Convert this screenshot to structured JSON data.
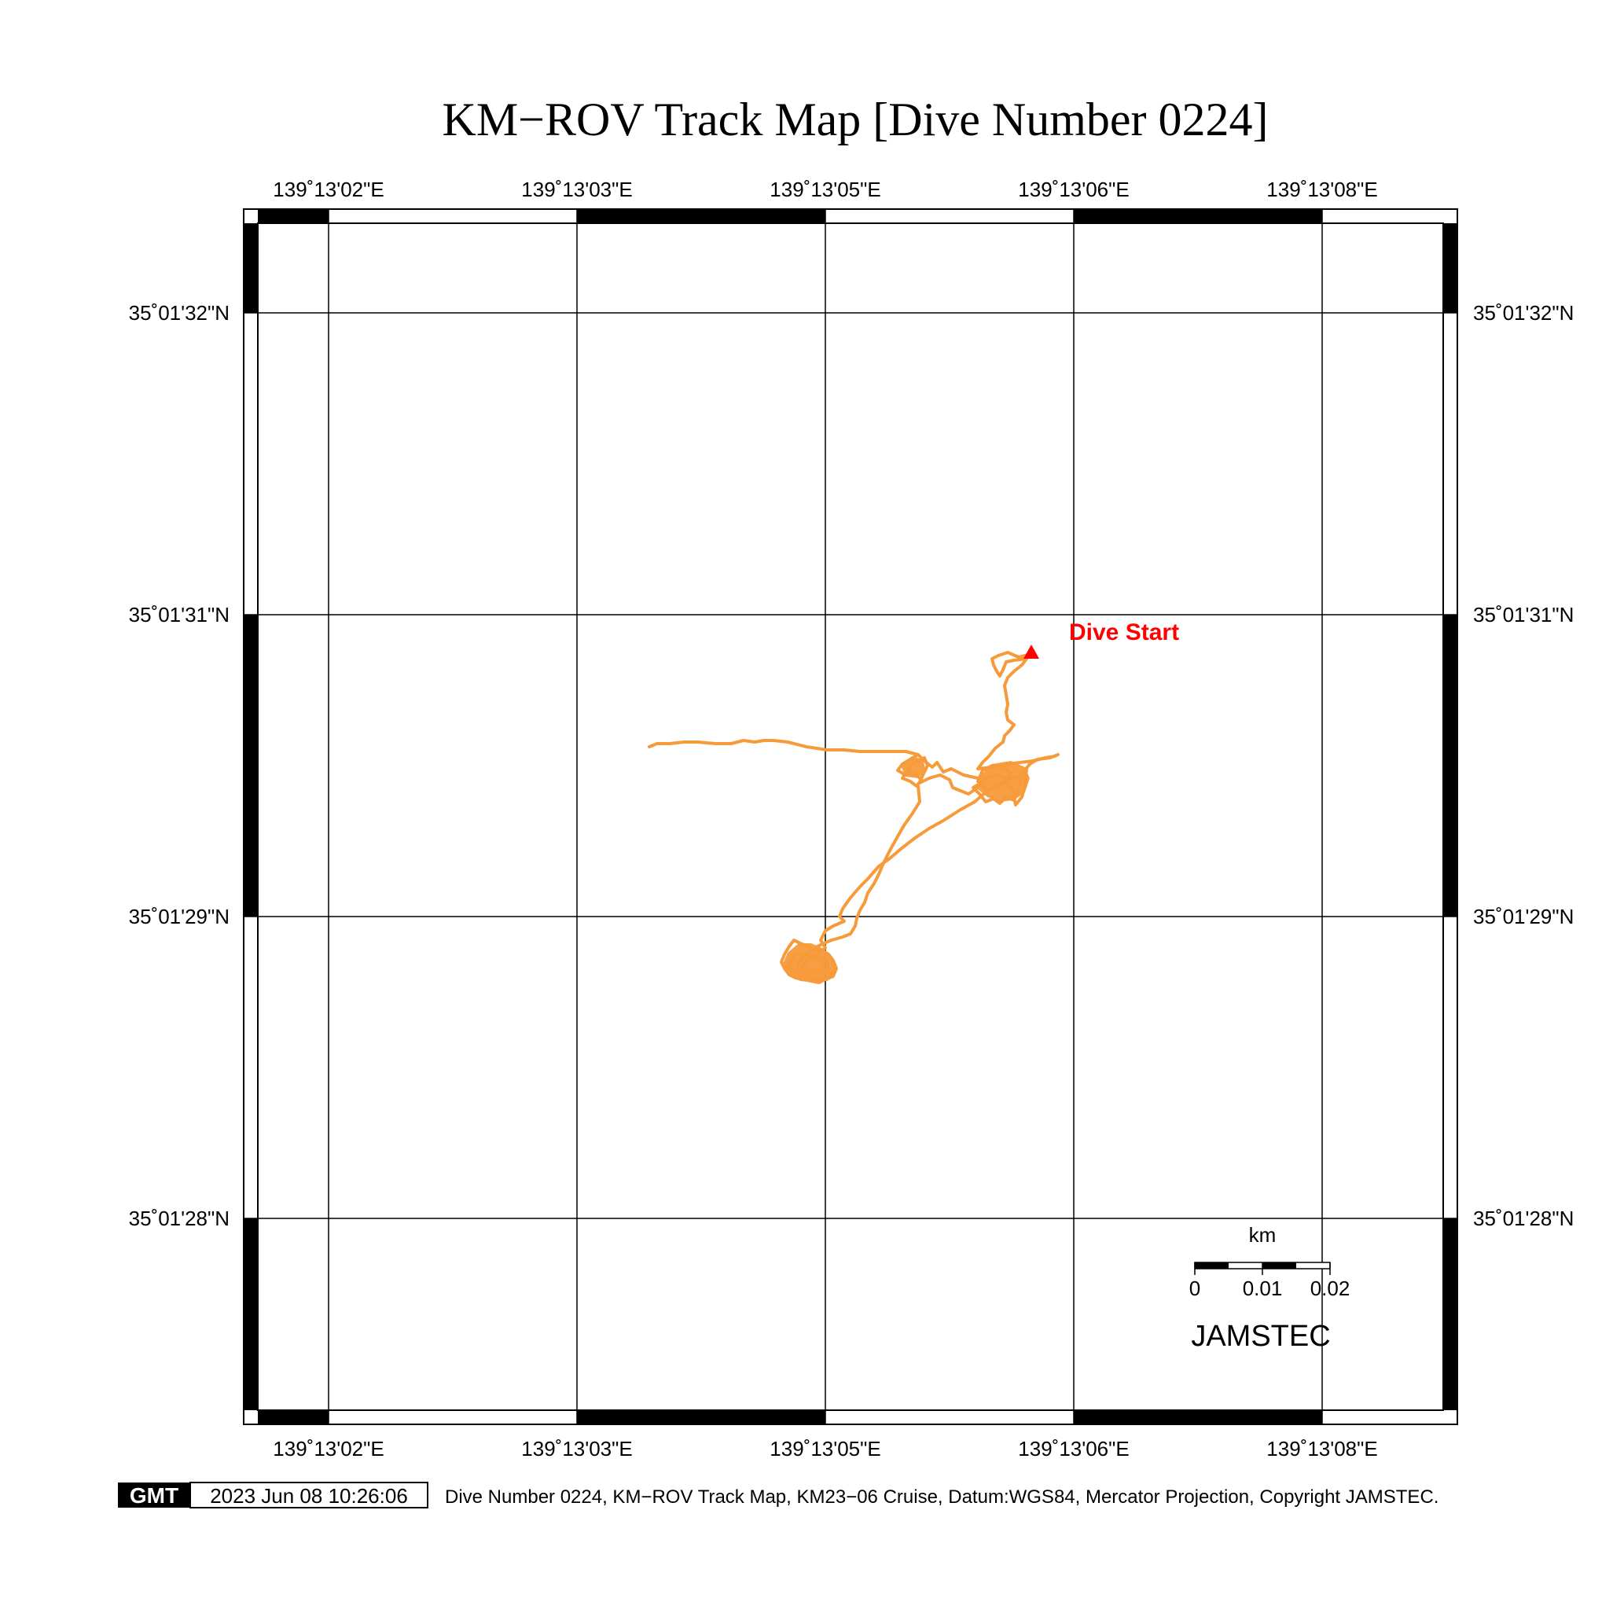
{
  "title": "KM−ROV Track Map [Dive Number 0224]",
  "axes": {
    "lon_ticks": [
      "139˚13'02\"E",
      "139˚13'03\"E",
      "139˚13'05\"E",
      "139˚13'06\"E",
      "139˚13'08\"E"
    ],
    "lat_ticks": [
      "35˚01'32\"N",
      "35˚01'31\"N",
      "35˚01'29\"N",
      "35˚01'28\"N"
    ]
  },
  "track": {
    "color": "#f79a3a",
    "start_marker_color": "#ff0000",
    "start_label": "Dive Start"
  },
  "scale_bar": {
    "unit": "km",
    "labels": [
      "0",
      "0.01",
      "0.02"
    ]
  },
  "brand": "JAMSTEC",
  "footer": {
    "logo_text": "GMT",
    "timestamp": "2023 Jun 08 10:26:06",
    "caption": "Dive Number 0224, KM−ROV Track Map, KM23−06 Cruise, Datum:WGS84, Mercator Projection, Copyright JAMSTEC."
  }
}
